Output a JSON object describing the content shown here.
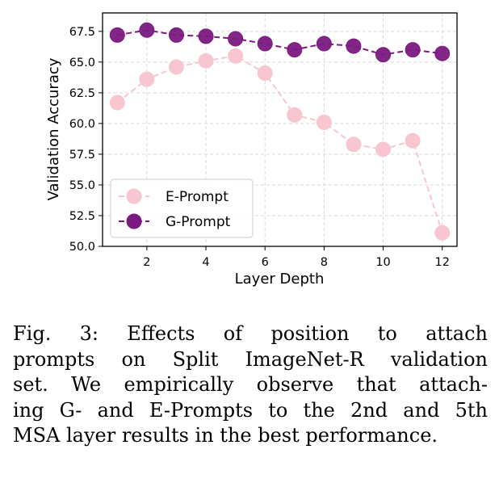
{
  "chart_data": {
    "type": "line",
    "title": "",
    "xlabel": "Layer Depth",
    "ylabel": "Validation Accuracy",
    "xlim": [
      0.5,
      12.5
    ],
    "ylim": [
      50.0,
      69.0
    ],
    "x": [
      1,
      2,
      3,
      4,
      5,
      6,
      7,
      8,
      9,
      10,
      11,
      12
    ],
    "xticks": [
      2,
      4,
      6,
      8,
      10,
      12
    ],
    "yticks": [
      50.0,
      52.5,
      55.0,
      57.5,
      60.0,
      62.5,
      65.0,
      67.5
    ],
    "ytick_labels": [
      "50.0",
      "52.5",
      "55.0",
      "57.5",
      "60.0",
      "62.5",
      "65.0",
      "67.5"
    ],
    "grid": true,
    "legend_position": "lower-left",
    "series": [
      {
        "name": "E-Prompt",
        "color": "#F7C6D0",
        "values": [
          61.7,
          63.6,
          64.6,
          65.1,
          65.5,
          64.1,
          60.7,
          60.1,
          58.3,
          57.9,
          58.6,
          51.1
        ]
      },
      {
        "name": "G-Prompt",
        "color": "#7A1A80",
        "values": [
          67.2,
          67.6,
          67.2,
          67.1,
          66.9,
          66.5,
          66.0,
          66.5,
          66.3,
          65.6,
          66.0,
          65.7
        ]
      }
    ]
  },
  "caption": {
    "lines": [
      "Fig. 3: Effects of position to attach",
      "prompts on Split ImageNet-R validation",
      "set. We empirically observe that attach-",
      "ing G- and E-Prompts to the 2nd and 5th",
      "MSA layer results in the best performance."
    ]
  }
}
